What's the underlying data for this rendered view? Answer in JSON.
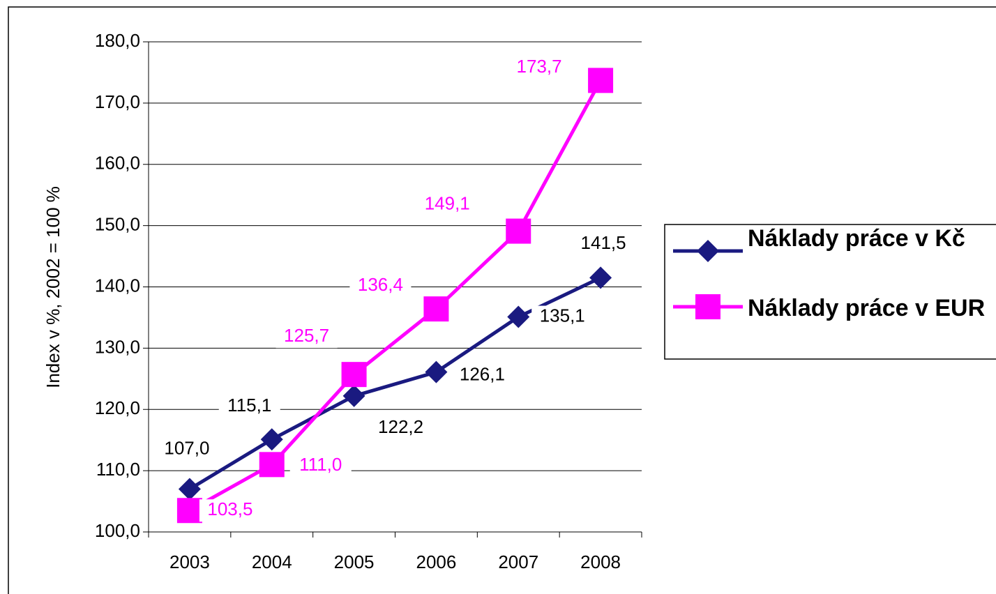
{
  "chart_data": {
    "type": "line",
    "ylabel": "Index v %, 2002 = 100 %",
    "categories": [
      "2003",
      "2004",
      "2005",
      "2006",
      "2007",
      "2008"
    ],
    "series": [
      {
        "name": "Náklady práce v Kč",
        "color": "#1a1a80",
        "marker": "diamond",
        "values": [
          107.0,
          115.1,
          122.2,
          126.1,
          135.1,
          141.5
        ],
        "value_labels": [
          "107,0",
          "115,1",
          "122,2",
          "126,1",
          "135,1",
          "141,5"
        ]
      },
      {
        "name": "Náklady práce v EUR",
        "color": "#ff00ff",
        "marker": "square",
        "values": [
          103.5,
          111.0,
          125.7,
          136.4,
          149.1,
          173.7
        ],
        "value_labels": [
          "103,5",
          "111,0",
          "125,7",
          "136,4",
          "149,1",
          "173,7"
        ]
      }
    ],
    "ylim": [
      100,
      180
    ],
    "yticks": [
      {
        "value": 100,
        "label": "100,0"
      },
      {
        "value": 110,
        "label": "110,0"
      },
      {
        "value": 120,
        "label": "120,0"
      },
      {
        "value": 130,
        "label": "130,0"
      },
      {
        "value": 140,
        "label": "140,0"
      },
      {
        "value": 150,
        "label": "150,0"
      },
      {
        "value": 160,
        "label": "160,0"
      },
      {
        "value": 170,
        "label": "170,0"
      },
      {
        "value": 180,
        "label": "180,0"
      }
    ],
    "grid": true
  }
}
